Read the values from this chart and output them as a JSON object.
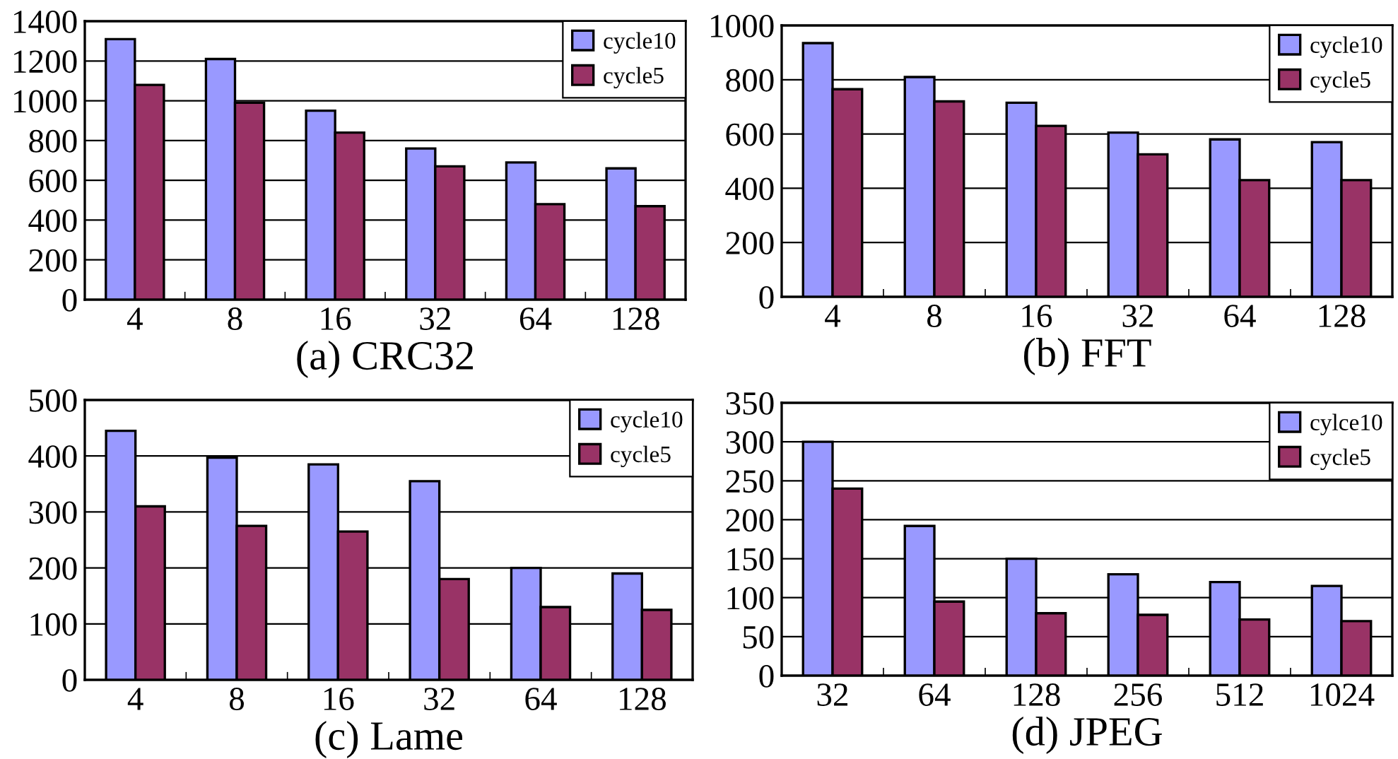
{
  "chart_data": [
    {
      "type": "bar",
      "xlabel": "(a) CRC32",
      "categories": [
        "4",
        "8",
        "16",
        "32",
        "64",
        "128"
      ],
      "ylim": [
        0,
        1400
      ],
      "yticks": [
        0,
        200,
        400,
        600,
        800,
        1000,
        1200,
        1400
      ],
      "grid": "y",
      "legend": "top right",
      "series": [
        {
          "name": "cycle10",
          "color": "#9999ff",
          "values": [
            1310,
            1210,
            950,
            760,
            690,
            660
          ]
        },
        {
          "name": "cycle5",
          "color": "#993366",
          "values": [
            1080,
            990,
            840,
            670,
            480,
            470
          ]
        }
      ]
    },
    {
      "type": "bar",
      "xlabel": "(b) FFT",
      "categories": [
        "4",
        "8",
        "16",
        "32",
        "64",
        "128"
      ],
      "ylim": [
        0,
        1000
      ],
      "yticks": [
        0,
        200,
        400,
        600,
        800,
        1000
      ],
      "grid": "y",
      "legend": "top right",
      "series": [
        {
          "name": "cycle10",
          "color": "#9999ff",
          "values": [
            935,
            810,
            715,
            605,
            580,
            570
          ]
        },
        {
          "name": "cycle5",
          "color": "#993366",
          "values": [
            765,
            720,
            630,
            525,
            430,
            430
          ]
        }
      ]
    },
    {
      "type": "bar",
      "xlabel": "(c) Lame",
      "categories": [
        "4",
        "8",
        "16",
        "32",
        "64",
        "128"
      ],
      "ylim": [
        0,
        500
      ],
      "yticks": [
        0,
        100,
        200,
        300,
        400,
        500
      ],
      "grid": "y",
      "legend": "top right",
      "series": [
        {
          "name": "cycle10",
          "color": "#9999ff",
          "values": [
            445,
            397,
            385,
            355,
            200,
            190
          ]
        },
        {
          "name": "cycle5",
          "color": "#993366",
          "values": [
            310,
            275,
            265,
            180,
            130,
            125
          ]
        }
      ]
    },
    {
      "type": "bar",
      "xlabel": "(d) JPEG",
      "categories": [
        "32",
        "64",
        "128",
        "256",
        "512",
        "1024"
      ],
      "ylim": [
        0,
        350
      ],
      "yticks": [
        0,
        50,
        100,
        150,
        200,
        250,
        300,
        350
      ],
      "grid": "y",
      "legend": "top right",
      "series": [
        {
          "name": "cylce10",
          "color": "#9999ff",
          "values": [
            300,
            192,
            150,
            130,
            120,
            115
          ]
        },
        {
          "name": "cycle5",
          "color": "#993366",
          "values": [
            240,
            95,
            80,
            78,
            72,
            70
          ]
        }
      ]
    }
  ]
}
